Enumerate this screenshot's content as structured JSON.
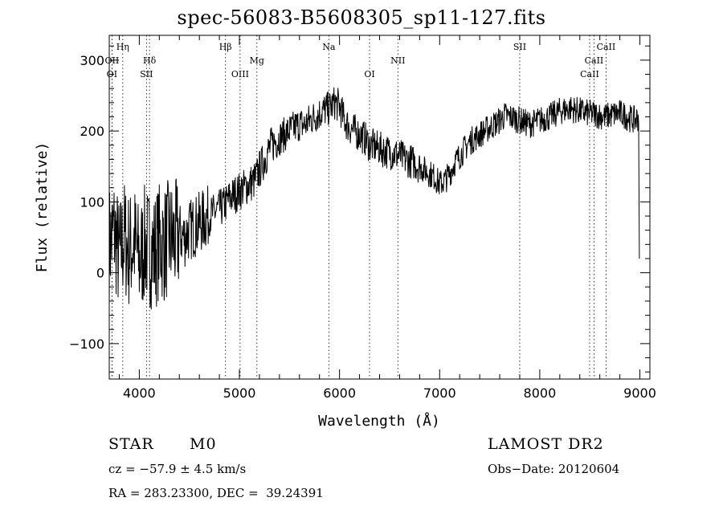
{
  "chart_data": {
    "type": "line",
    "title": "spec-56083-B5608305_sp11-127.fits",
    "xlabel": "Wavelength (Å)",
    "ylabel": "Flux (relative)",
    "xlim": [
      3700,
      9100
    ],
    "ylim": [
      -150,
      335
    ],
    "xticks": [
      4000,
      5000,
      6000,
      7000,
      8000,
      9000
    ],
    "yticks": [
      -100,
      0,
      100,
      200,
      300
    ],
    "grid": false,
    "legend": "none",
    "series": [
      {
        "x": [
          3700,
          3750,
          3800,
          3850,
          3900,
          3950,
          4000,
          4050,
          4100,
          4150,
          4200,
          4250,
          4300,
          4350,
          4400,
          4450,
          4500,
          4550,
          4600,
          4650,
          4700,
          4750,
          4800,
          4850,
          4900,
          4950,
          5000,
          5050,
          5100,
          5150,
          5200,
          5250,
          5300,
          5350,
          5400,
          5450,
          5500,
          5550,
          5600,
          5650,
          5700,
          5750,
          5800,
          5850,
          5900,
          5950,
          6000,
          6050,
          6100,
          6150,
          6200,
          6250,
          6300,
          6350,
          6400,
          6450,
          6500,
          6550,
          6600,
          6650,
          6700,
          6750,
          6800,
          6850,
          6900,
          6950,
          7000,
          7050,
          7100,
          7150,
          7200,
          7250,
          7300,
          7350,
          7400,
          7450,
          7500,
          7550,
          7600,
          7650,
          7700,
          7750,
          7800,
          7850,
          7900,
          7950,
          8000,
          8050,
          8100,
          8150,
          8200,
          8250,
          8300,
          8350,
          8400,
          8450,
          8500,
          8550,
          8600,
          8650,
          8700,
          8750,
          8800,
          8850,
          8900,
          8950,
          8990
        ],
        "y": [
          40,
          60,
          20,
          50,
          30,
          45,
          15,
          40,
          35,
          30,
          45,
          40,
          50,
          45,
          55,
          50,
          60,
          65,
          70,
          75,
          80,
          85,
          90,
          95,
          105,
          110,
          115,
          120,
          125,
          130,
          145,
          160,
          175,
          185,
          190,
          195,
          200,
          205,
          210,
          208,
          215,
          220,
          225,
          230,
          232,
          240,
          235,
          215,
          205,
          200,
          195,
          190,
          180,
          178,
          175,
          172,
          170,
          168,
          165,
          160,
          158,
          155,
          150,
          145,
          140,
          135,
          125,
          130,
          140,
          155,
          165,
          175,
          185,
          190,
          195,
          200,
          205,
          210,
          215,
          222,
          220,
          218,
          215,
          212,
          210,
          212,
          215,
          218,
          220,
          224,
          228,
          230,
          232,
          230,
          228,
          226,
          225,
          224,
          222,
          220,
          222,
          224,
          225,
          222,
          218,
          215,
          220
        ]
      }
    ],
    "line_markers": [
      {
        "label": "Hη",
        "x": 3835,
        "row": 1
      },
      {
        "label": "OII",
        "x": 3727,
        "row": 2
      },
      {
        "label": "OI",
        "x": 3727,
        "row": 3
      },
      {
        "label": "Hδ",
        "x": 4102,
        "row": 2
      },
      {
        "label": "SII",
        "x": 4072,
        "row": 3
      },
      {
        "label": "Hβ",
        "x": 4861,
        "row": 1
      },
      {
        "label": "OIII",
        "x": 5007,
        "row": 3
      },
      {
        "label": "Mg",
        "x": 5175,
        "row": 2
      },
      {
        "label": "Na",
        "x": 5893,
        "row": 1
      },
      {
        "label": "OI",
        "x": 6300,
        "row": 3
      },
      {
        "label": "NII",
        "x": 6583,
        "row": 2
      },
      {
        "label": "SII",
        "x": 7800,
        "row": 1
      },
      {
        "label": "CaII",
        "x": 8662,
        "row": 1
      },
      {
        "label": "CaII",
        "x": 8542,
        "row": 2
      },
      {
        "label": "CaII",
        "x": 8498,
        "row": 3
      }
    ]
  },
  "info": {
    "object_class": "STAR",
    "subclass": "M0",
    "survey": "LAMOST DR2",
    "cz": "cz = −57.9 ± 4.5 km/s",
    "obs_date": "Obs−Date: 20120604",
    "coords": "RA = 283.23300, DEC =  39.24391"
  }
}
